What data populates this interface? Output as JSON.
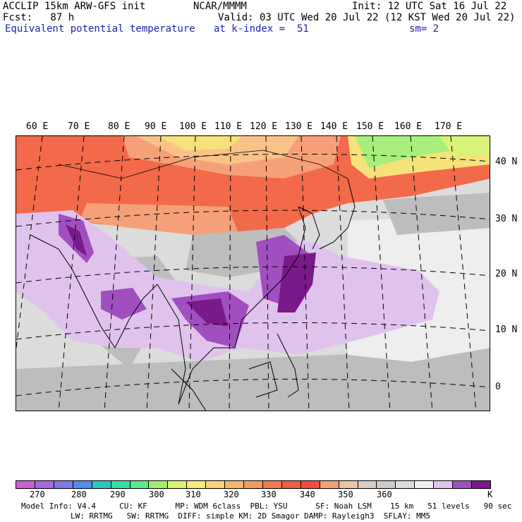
{
  "header": {
    "line1_left": "ACCLIP 15km ARW-GFS init",
    "line1_mid": "NCAR/MMMM",
    "line1_right": "Init: 12 UTC Sat 16 Jul 22",
    "line2_left": "Fcst:   87 h",
    "line2_right": "Valid: 03 UTC Wed 20 Jul 22 (12 KST Wed 20 Jul 22)",
    "line3_left": "Equivalent potential temperature",
    "line3_mid": "at k-index =  51",
    "line3_right": "sm= 2"
  },
  "map": {
    "longitude_labels": [
      "60 E",
      "70 E",
      "80 E",
      "90 E",
      "100 E",
      "110 E",
      "120 E",
      "130 E",
      "140 E",
      "150 E",
      "160 E",
      "170 E"
    ],
    "latitude_labels": [
      "40 N",
      "30 N",
      "20 N",
      "10 N",
      "0"
    ],
    "field_colors": {
      "ocean_gray": "#bdbdbd",
      "light_gray": "#dcdcdc",
      "near_white": "#eeeeee",
      "lavender": "#e0c3ec",
      "purple": "#a04fc0",
      "dark_purple": "#7a1a8a",
      "orange_red": "#f26a4a",
      "red": "#f04f3f",
      "salmon": "#f6a07a",
      "light_orange": "#f9c388",
      "yellow": "#f6e27a",
      "yellow_green": "#d8f27a",
      "green": "#a8ee7a"
    }
  },
  "colorbar": {
    "colors": [
      "#cc5fd6",
      "#a868e6",
      "#7f78e8",
      "#4f8ef0",
      "#2dc7c2",
      "#35e0a2",
      "#58ec8c",
      "#a0ee6e",
      "#dcf270",
      "#fbe87a",
      "#fcd27a",
      "#f8b56e",
      "#f59a62",
      "#f47a52",
      "#f25c46",
      "#f04f3f",
      "#f6a07a",
      "#ebc4a4",
      "#d7cdc6",
      "#cdcbca",
      "#dcdcdc",
      "#eeeeee",
      "#e0c3ec",
      "#a04fc0",
      "#7a1a8a"
    ],
    "labels": [
      "270",
      "280",
      "290",
      "300",
      "310",
      "320",
      "330",
      "340",
      "350",
      "360",
      "K"
    ]
  },
  "model_info": {
    "line1": "Model Info: V4.4     CU: KF      MP: WDM 6class  PBL: YSU      SF: Noah LSM    15 km   51 levels   90 sec",
    "line2": "LW: RRTMG   SW: RRTMG  DIFF: simple KM: 2D Smagor DAMP: Rayleigh3  SFLAY: MM5"
  }
}
